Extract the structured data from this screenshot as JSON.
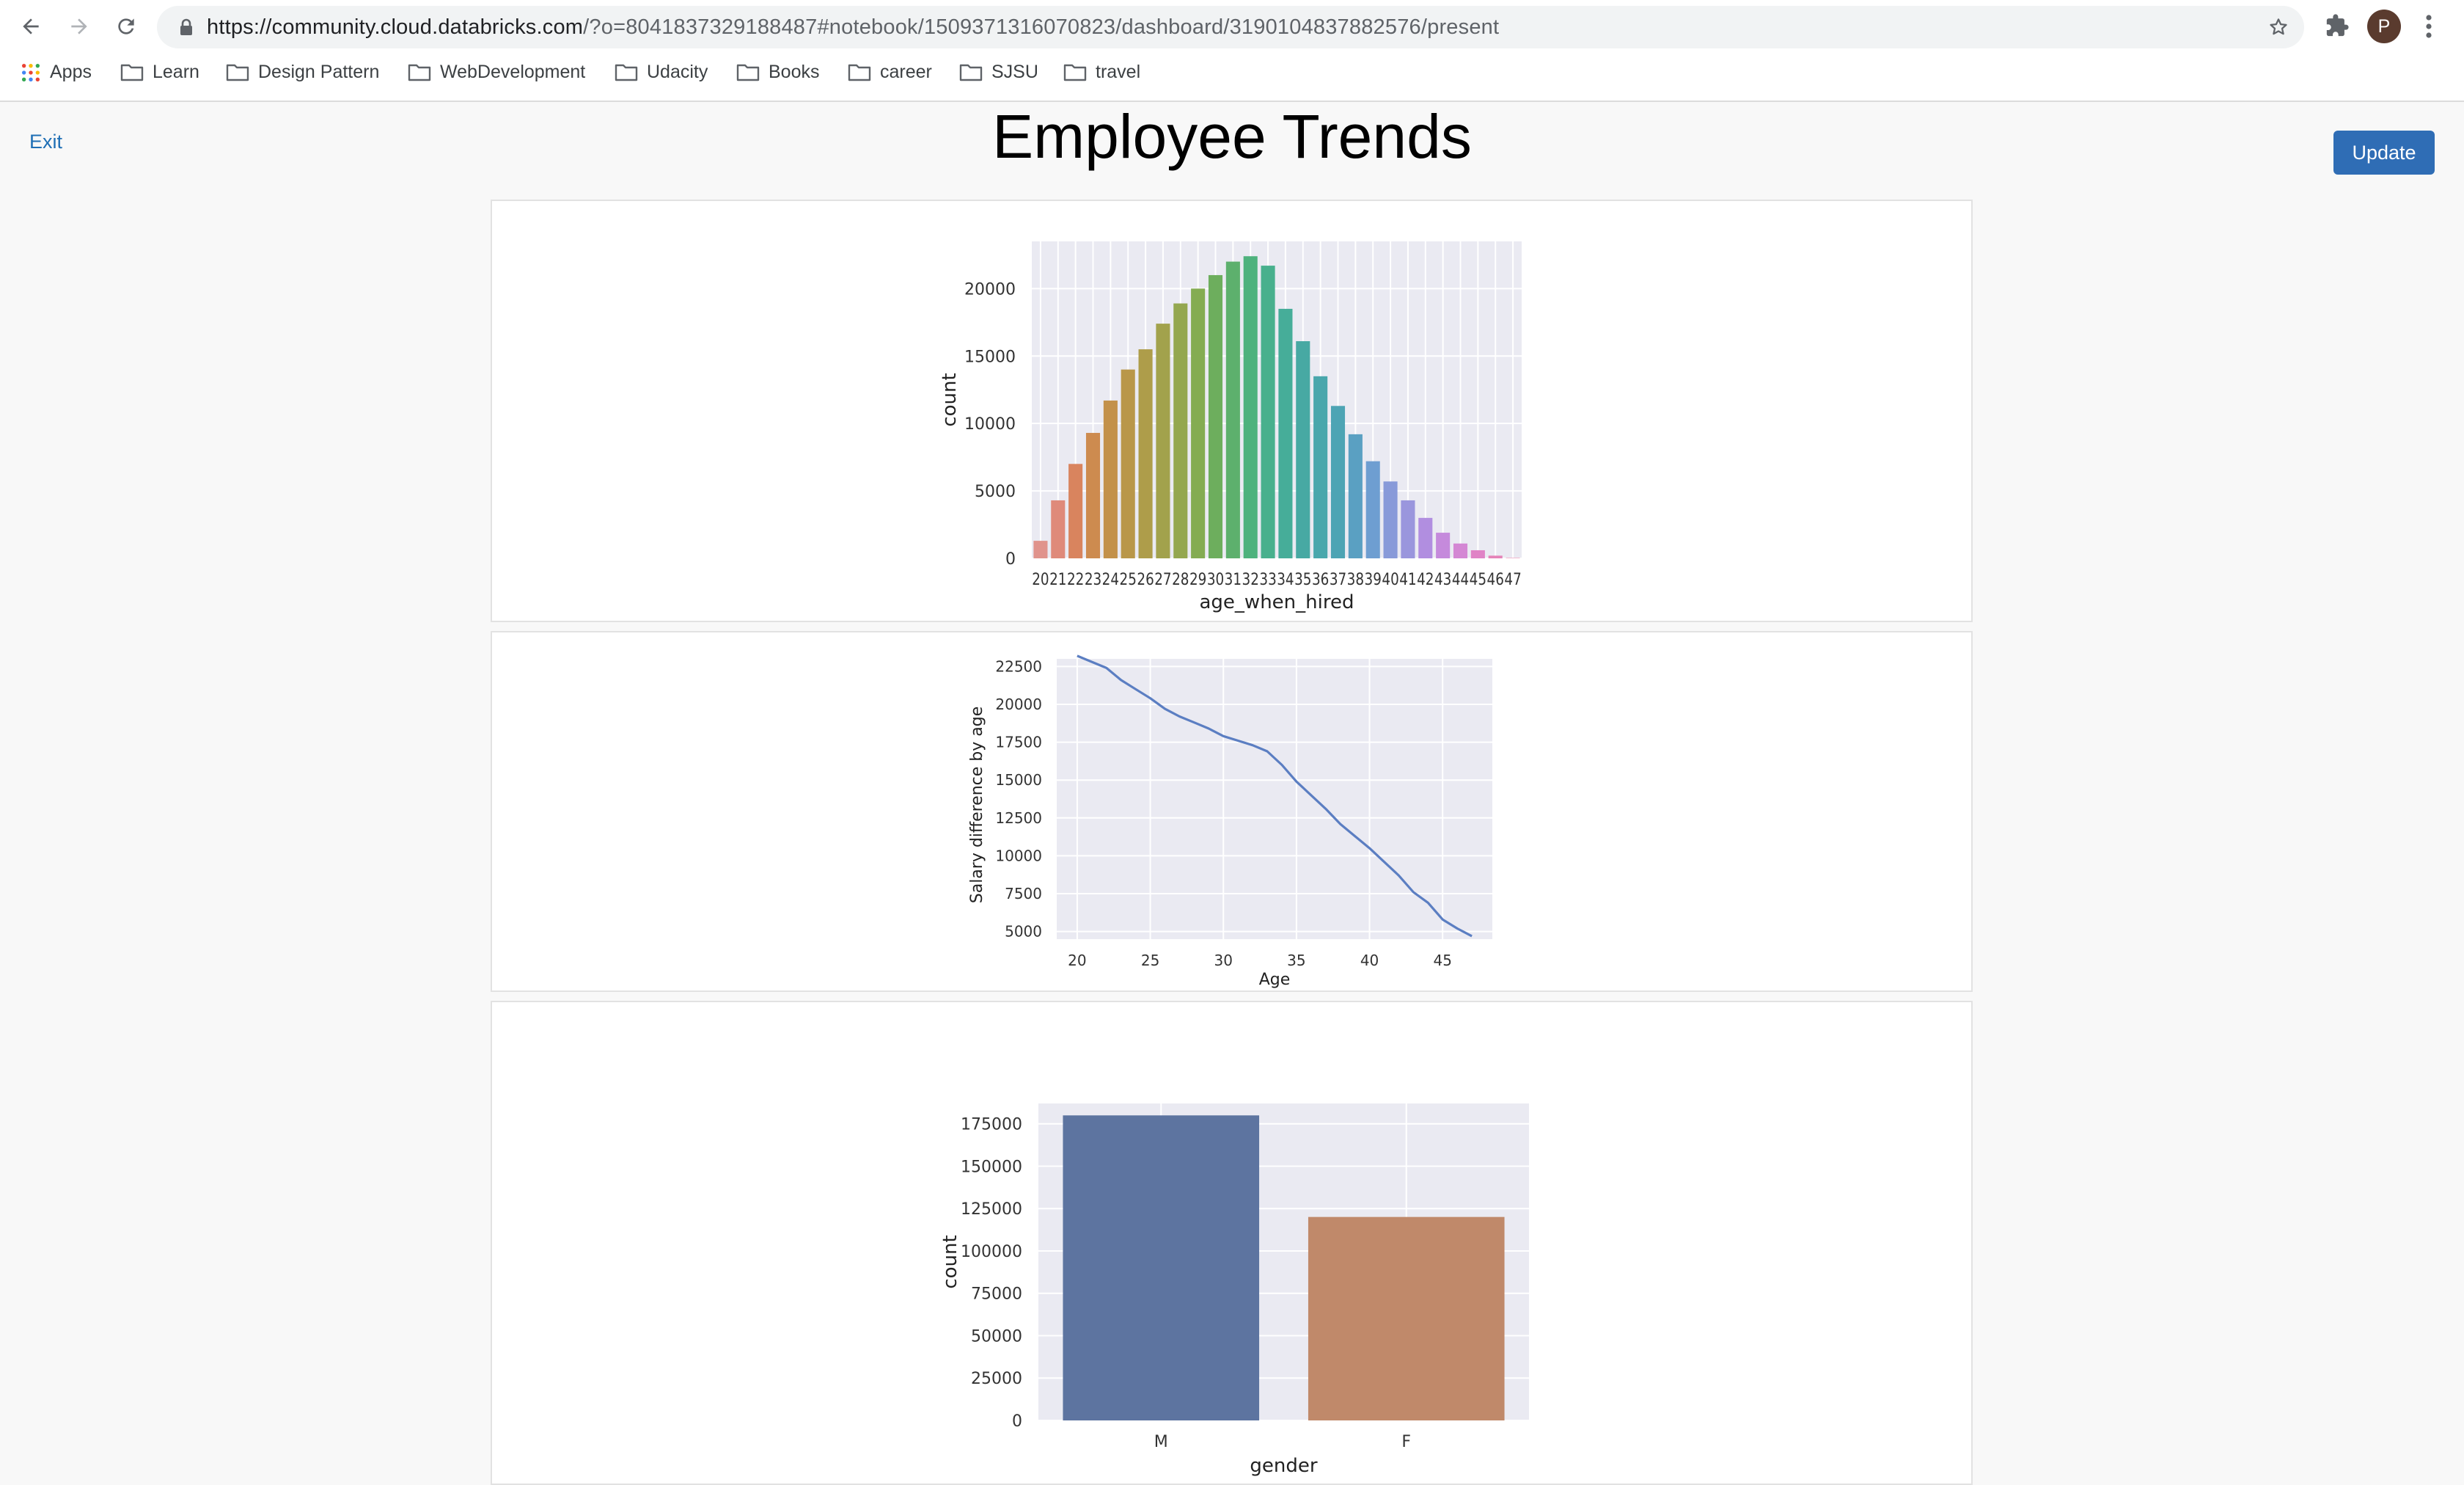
{
  "browser": {
    "url_host": "https://community.cloud.databricks.com",
    "url_path": "/?o=8041837329188487#notebook/1509371316070823/dashboard/3190104837882576/present",
    "profile_initial": "P",
    "bookmarks": [
      "Apps",
      "Learn",
      "Design Pattern",
      "WebDevelopment",
      "Udacity",
      "Books",
      "career",
      "SJSU",
      "travel"
    ]
  },
  "dashboard": {
    "exit_label": "Exit",
    "title": "Employee Trends",
    "update_label": "Update"
  },
  "chart_data": [
    {
      "type": "bar",
      "xlabel": "age_when_hired",
      "ylabel": "count",
      "ylim": [
        0,
        23500
      ],
      "yticks": [
        0,
        5000,
        10000,
        15000,
        20000
      ],
      "categories": [
        "20",
        "21",
        "22",
        "23",
        "24",
        "25",
        "26",
        "27",
        "28",
        "29",
        "30",
        "31",
        "32",
        "33",
        "34",
        "35",
        "36",
        "37",
        "38",
        "39",
        "40",
        "41",
        "42",
        "43",
        "44",
        "45",
        "46",
        "47"
      ],
      "values": [
        1300,
        4300,
        7000,
        9300,
        11700,
        14000,
        15500,
        17400,
        18900,
        20000,
        21000,
        22000,
        22400,
        21700,
        18500,
        16100,
        13500,
        11300,
        9200,
        7200,
        5700,
        4300,
        3000,
        1900,
        1100,
        600,
        200,
        30
      ],
      "colors": [
        "#e0938c",
        "#df8a7a",
        "#d9845e",
        "#cd8b4f",
        "#c3914a",
        "#b99749",
        "#ae9d4a",
        "#a2a24c",
        "#94a74f",
        "#84ac52",
        "#6dae5d",
        "#5db06d",
        "#4eb27d",
        "#48b08d",
        "#46ad99",
        "#47a9a3",
        "#49a7ac",
        "#4da4b4",
        "#5aa0c2",
        "#6e9ed1",
        "#889ad9",
        "#9a96dd",
        "#b18ee0",
        "#c58adc",
        "#d487d4",
        "#e083c6",
        "#e583b8",
        "#e884ac"
      ],
      "grid": true
    },
    {
      "type": "line",
      "xlabel": "Age",
      "ylabel": "Salary difference by age",
      "xlim": [
        18.6,
        48.4
      ],
      "ylim": [
        4500,
        23000
      ],
      "xticks": [
        20,
        25,
        30,
        35,
        40,
        45
      ],
      "yticks": [
        5000,
        7500,
        10000,
        12500,
        15000,
        17500,
        20000,
        22500
      ],
      "x": [
        20,
        21,
        22,
        23,
        24,
        25,
        26,
        27,
        28,
        29,
        30,
        31,
        32,
        33,
        34,
        35,
        36,
        37,
        38,
        39,
        40,
        41,
        42,
        43,
        44,
        45,
        46,
        47
      ],
      "y": [
        23200,
        22800,
        22400,
        21600,
        21000,
        20400,
        19700,
        19200,
        18800,
        18400,
        17900,
        17600,
        17300,
        16900,
        16000,
        14900,
        14000,
        13100,
        12100,
        11300,
        10500,
        9600,
        8700,
        7600,
        6900,
        5800,
        5200,
        4700
      ],
      "color": "#5b7ec2",
      "grid": true
    },
    {
      "type": "bar",
      "xlabel": "gender",
      "ylabel": "count",
      "ylim": [
        0,
        187000
      ],
      "yticks": [
        0,
        25000,
        50000,
        75000,
        100000,
        125000,
        150000,
        175000
      ],
      "categories": [
        "M",
        "F"
      ],
      "values": [
        179973,
        120051
      ],
      "colors": [
        "#5d74a0",
        "#c0896a"
      ],
      "grid": true
    }
  ]
}
